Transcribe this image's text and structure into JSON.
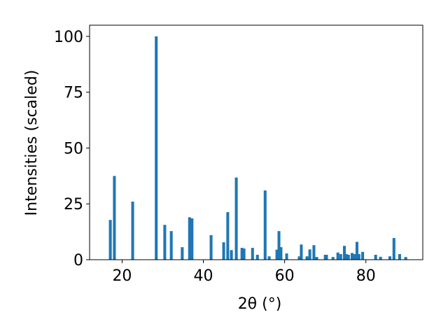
{
  "chart_data": {
    "type": "bar",
    "xlabel": "2θ (°)",
    "ylabel": "Intensities (scaled)",
    "x": [
      17.1,
      18.1,
      22.6,
      28.4,
      30.5,
      32.1,
      34.8,
      36.6,
      37.2,
      41.9,
      45.0,
      46.0,
      46.9,
      48.1,
      49.5,
      50.0,
      52.1,
      53.3,
      55.2,
      56.2,
      58.1,
      58.6,
      59.1,
      60.5,
      63.6,
      64.1,
      65.5,
      66.2,
      67.2,
      67.9,
      70.0,
      70.3,
      71.9,
      73.1,
      73.8,
      74.7,
      75.2,
      75.7,
      76.6,
      77.2,
      77.8,
      78.3,
      79.2,
      82.4,
      83.6,
      85.9,
      86.9,
      88.3,
      89.8
    ],
    "values": [
      17.8,
      37.5,
      26,
      100,
      15.6,
      12.8,
      5.6,
      19,
      18.5,
      11,
      7.8,
      21.3,
      4.3,
      36.8,
      5.3,
      5,
      5.3,
      2.2,
      31,
      1.5,
      4.5,
      12.8,
      5.6,
      2.8,
      1.5,
      6.8,
      1.5,
      4.6,
      6.5,
      1.2,
      2.2,
      2.2,
      1.2,
      3.2,
      2.5,
      6.2,
      2.5,
      2.2,
      3.0,
      2.5,
      8.0,
      2.5,
      3.5,
      2.2,
      1.3,
      1.5,
      9.7,
      2.5,
      1.2
    ],
    "color": "#1f77b4",
    "xlim": [
      12,
      94
    ],
    "xticks": [
      20,
      40,
      60,
      80
    ],
    "ylim": [
      0,
      105
    ],
    "yticks": [
      0,
      25,
      50,
      75,
      100
    ],
    "grid": false
  }
}
